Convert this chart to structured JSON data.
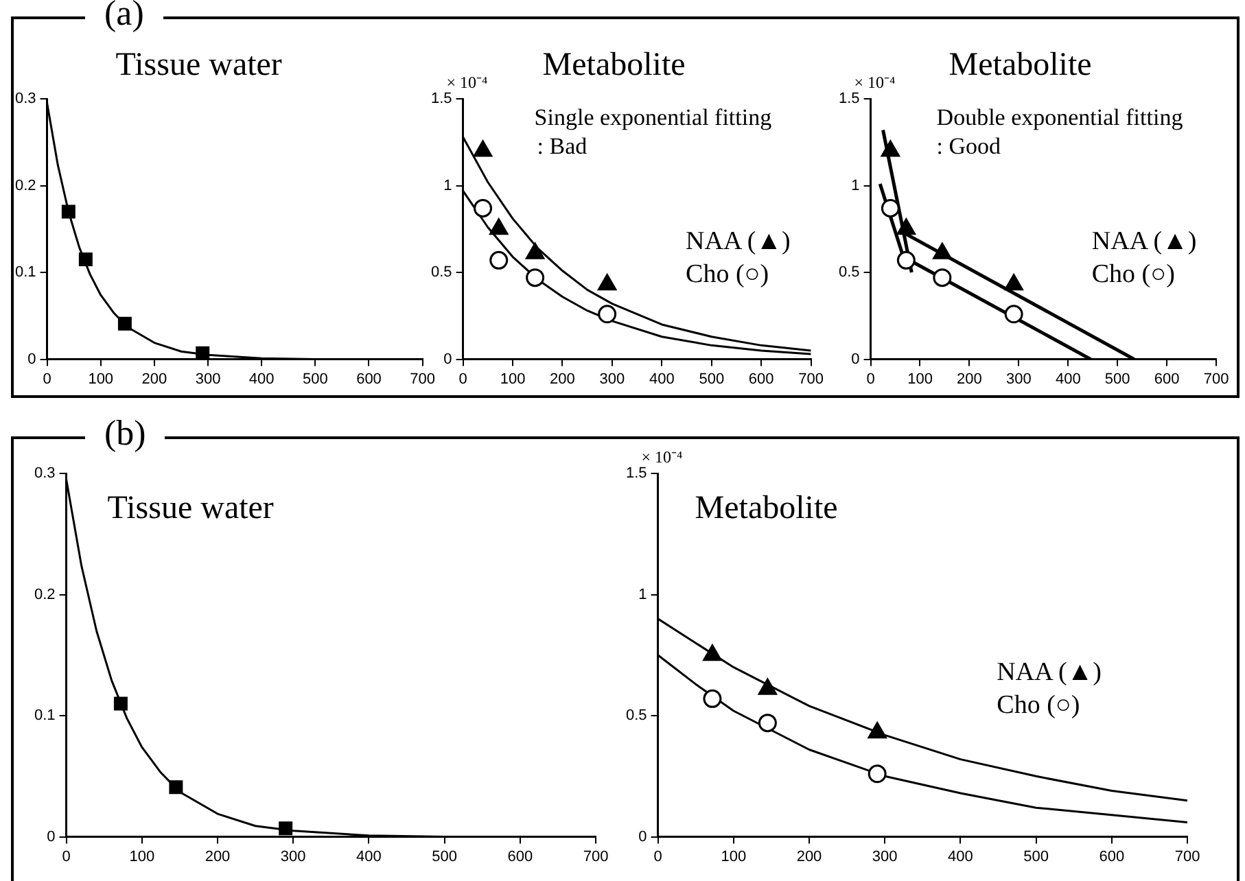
{
  "chart_data": [
    {
      "type": "scatter",
      "title": "Tissue water",
      "annotations": [
        "(a)"
      ],
      "xlim": [
        0,
        700
      ],
      "xticks": [
        0,
        100,
        200,
        300,
        400,
        500,
        600,
        700
      ],
      "ylim": [
        0,
        0.3
      ],
      "yticks": [
        0,
        0.1,
        0.2,
        0.3
      ],
      "series": [
        {
          "color": "#000000",
          "marker": "square",
          "x": [
            40,
            72,
            145,
            290
          ],
          "values": [
            0.17,
            0.115,
            0.041,
            0.007
          ]
        },
        {
          "type": "line",
          "color": "#000000",
          "marker": "none",
          "x": [
            0,
            20,
            40,
            60,
            80,
            100,
            125,
            150,
            200,
            250,
            300,
            400,
            500,
            600,
            700
          ],
          "values": [
            0.295,
            0.224,
            0.17,
            0.129,
            0.098,
            0.074,
            0.053,
            0.037,
            0.019,
            0.009,
            0.005,
            0.001,
            0,
            0,
            0
          ]
        }
      ]
    },
    {
      "type": "scatter",
      "title": "Metabolite",
      "ylabel": "× 10⁻⁴",
      "annotations": [
        "Single exponential fitting",
        ": Bad"
      ],
      "legend": "right",
      "xlim": [
        0,
        700
      ],
      "xticks": [
        0,
        100,
        200,
        300,
        400,
        500,
        600,
        700
      ],
      "ylim": [
        0,
        1.5
      ],
      "yticks": [
        0,
        0.5,
        1,
        1.5
      ],
      "series": [
        {
          "name": "NAA (▲)",
          "color": "#000000",
          "marker": "triangle",
          "x": [
            40,
            72,
            145,
            290
          ],
          "values": [
            1.2,
            0.75,
            0.61,
            0.43
          ]
        },
        {
          "name": "Cho (○)",
          "color": "#000000",
          "marker": "circle",
          "x": [
            40,
            72,
            145,
            290
          ],
          "values": [
            0.87,
            0.57,
            0.47,
            0.26
          ]
        },
        {
          "type": "line",
          "color": "#000000",
          "marker": "none",
          "x": [
            0,
            50,
            100,
            150,
            200,
            250,
            300,
            400,
            500,
            600,
            700
          ],
          "values": [
            1.28,
            1.02,
            0.81,
            0.64,
            0.51,
            0.4,
            0.32,
            0.2,
            0.13,
            0.08,
            0.05
          ]
        },
        {
          "type": "line",
          "color": "#000000",
          "marker": "none",
          "x": [
            0,
            50,
            100,
            150,
            200,
            250,
            300,
            400,
            500,
            600,
            700
          ],
          "values": [
            0.97,
            0.76,
            0.59,
            0.46,
            0.36,
            0.28,
            0.22,
            0.13,
            0.08,
            0.05,
            0.03
          ]
        }
      ]
    },
    {
      "type": "scatter",
      "title": "Metabolite",
      "ylabel": "× 10⁻⁴",
      "annotations": [
        "Double exponential fitting",
        ": Good"
      ],
      "legend": "right",
      "xlim": [
        0,
        700
      ],
      "xticks": [
        0,
        100,
        200,
        300,
        400,
        500,
        600,
        700
      ],
      "ylim": [
        0,
        1.5
      ],
      "yticks": [
        0,
        0.5,
        1,
        1.5
      ],
      "series": [
        {
          "name": "NAA (▲)",
          "color": "#000000",
          "marker": "triangle",
          "x": [
            40,
            72,
            145,
            290
          ],
          "values": [
            1.2,
            0.75,
            0.61,
            0.43
          ]
        },
        {
          "name": "Cho (○)",
          "color": "#000000",
          "marker": "circle",
          "x": [
            40,
            72,
            145,
            290
          ],
          "values": [
            0.87,
            0.57,
            0.47,
            0.26
          ]
        },
        {
          "type": "line",
          "color": "#000000",
          "marker": "none",
          "x": [
            25,
            83
          ],
          "values": [
            1.32,
            0.5
          ]
        },
        {
          "type": "line",
          "color": "#000000",
          "marker": "none",
          "x": [
            66,
            534
          ],
          "values": [
            0.73,
            0
          ]
        },
        {
          "type": "line",
          "color": "#000000",
          "marker": "none",
          "x": [
            19,
            74
          ],
          "values": [
            1.01,
            0.52
          ]
        },
        {
          "type": "line",
          "color": "#000000",
          "marker": "none",
          "x": [
            66,
            446
          ],
          "values": [
            0.59,
            0
          ]
        }
      ]
    },
    {
      "type": "scatter",
      "title": "Tissue water",
      "annotations": [
        "(b)"
      ],
      "xlim": [
        0,
        700
      ],
      "xticks": [
        0,
        100,
        200,
        300,
        400,
        500,
        600,
        700
      ],
      "ylim": [
        0,
        0.3
      ],
      "yticks": [
        0,
        0.1,
        0.2,
        0.3
      ],
      "series": [
        {
          "color": "#000000",
          "marker": "square",
          "x": [
            72,
            145,
            290
          ],
          "values": [
            0.11,
            0.041,
            0.007
          ]
        },
        {
          "type": "line",
          "color": "#000000",
          "marker": "none",
          "x": [
            0,
            20,
            40,
            60,
            80,
            100,
            125,
            150,
            200,
            250,
            300,
            400,
            500,
            600,
            700
          ],
          "values": [
            0.295,
            0.224,
            0.17,
            0.129,
            0.098,
            0.074,
            0.053,
            0.037,
            0.019,
            0.009,
            0.005,
            0.001,
            0,
            0,
            0
          ]
        }
      ]
    },
    {
      "type": "scatter",
      "title": "Metabolite",
      "ylabel": "× 10⁻⁴",
      "legend": "right",
      "xlim": [
        0,
        700
      ],
      "xticks": [
        0,
        100,
        200,
        300,
        400,
        500,
        600,
        700
      ],
      "ylim": [
        0,
        1.5
      ],
      "yticks": [
        0,
        0.5,
        1,
        1.5
      ],
      "series": [
        {
          "name": "NAA (▲)",
          "color": "#000000",
          "marker": "triangle",
          "x": [
            72,
            145,
            290
          ],
          "values": [
            0.75,
            0.61,
            0.43
          ]
        },
        {
          "name": "Cho (○)",
          "color": "#000000",
          "marker": "circle",
          "x": [
            72,
            145,
            290
          ],
          "values": [
            0.57,
            0.47,
            0.26
          ]
        },
        {
          "type": "line",
          "color": "#000000",
          "marker": "none",
          "x": [
            0,
            100,
            200,
            300,
            400,
            500,
            600,
            700
          ],
          "values": [
            0.9,
            0.7,
            0.54,
            0.42,
            0.32,
            0.25,
            0.19,
            0.15
          ]
        },
        {
          "type": "line",
          "color": "#000000",
          "marker": "none",
          "x": [
            0,
            50,
            100,
            150,
            200,
            300,
            400,
            500,
            600,
            700
          ],
          "values": [
            0.75,
            0.63,
            0.52,
            0.44,
            0.36,
            0.25,
            0.18,
            0.12,
            0.09,
            0.06
          ]
        }
      ]
    }
  ]
}
